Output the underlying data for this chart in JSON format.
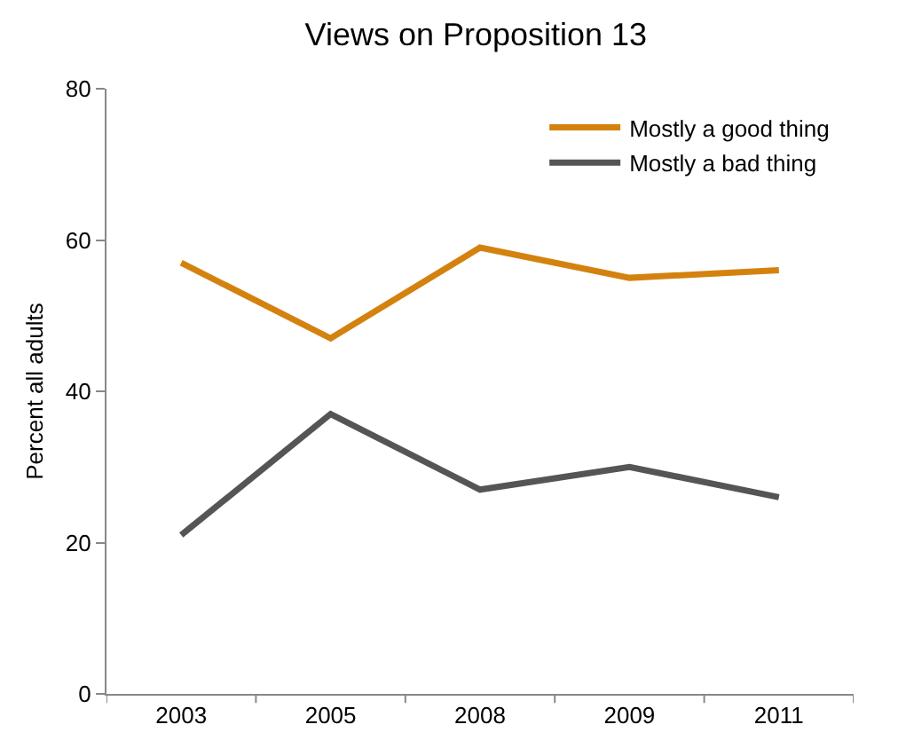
{
  "chart_data": {
    "type": "line",
    "title": "Views on Proposition 13",
    "ylabel": "Percent all adults",
    "categories": [
      "2003",
      "2005",
      "2008",
      "2009",
      "2011"
    ],
    "series": [
      {
        "name": "Mostly a good thing",
        "color": "#d4820f",
        "values": [
          57,
          47,
          59,
          55,
          56
        ]
      },
      {
        "name": "Mostly a bad thing",
        "color": "#555555",
        "values": [
          21,
          37,
          27,
          30,
          26
        ]
      }
    ],
    "ylim": [
      0,
      80
    ],
    "yticks": [
      0,
      20,
      40,
      60,
      80
    ],
    "grid": false,
    "legend": "top right",
    "marker": "none",
    "line_style": "solid"
  }
}
